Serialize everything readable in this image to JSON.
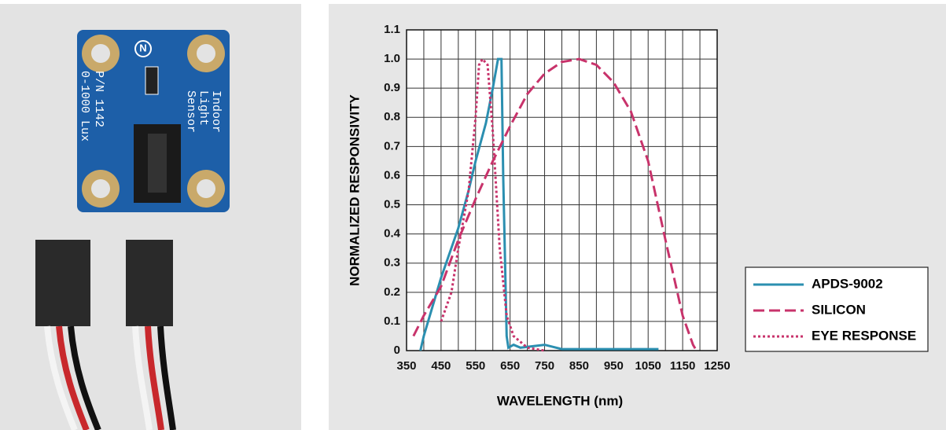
{
  "photo": {
    "board_lines": [
      "Indoor",
      "Light",
      "Sensor",
      "P/N 1142",
      "0-1000 Lux"
    ],
    "logo": "N"
  },
  "chart_data": {
    "type": "line",
    "x_label": "WAVELENGTH (nm)",
    "y_label": "NORMALIZED RESPONSIVITY",
    "xlim": [
      350,
      1250
    ],
    "ylim": [
      0,
      1.1
    ],
    "xticks": [
      350,
      450,
      550,
      650,
      750,
      850,
      950,
      1050,
      1150,
      1250
    ],
    "xminor": [
      400,
      500,
      600,
      700,
      800,
      900,
      1000,
      1100,
      1200
    ],
    "yticks": [
      0,
      0.1,
      0.2,
      0.3,
      0.4,
      0.5,
      0.6,
      0.7,
      0.8,
      0.9,
      {
        "value": 1,
        "label": "1.0"
      },
      1.1
    ],
    "grid": true,
    "legend": "lower right",
    "series": [
      {
        "name": "APDS-9002",
        "color": "#2b8fb0",
        "style": "solid",
        "x": [
          390,
          400,
          450,
          500,
          530,
          550,
          580,
          600,
          615,
          625,
          630,
          640,
          645,
          660,
          680,
          750,
          800,
          1080
        ],
        "values": [
          0,
          0.05,
          0.25,
          0.42,
          0.55,
          0.65,
          0.78,
          0.9,
          1.0,
          1.0,
          0.6,
          0.05,
          0.01,
          0.02,
          0.01,
          0.02,
          0.005,
          0.005
        ]
      },
      {
        "name": "SILICON",
        "color": "#c8336b",
        "style": "dashed",
        "x": [
          370,
          400,
          450,
          500,
          550,
          600,
          650,
          700,
          750,
          800,
          850,
          900,
          950,
          1000,
          1050,
          1100,
          1150,
          1180,
          1190
        ],
        "values": [
          0.05,
          0.12,
          0.22,
          0.38,
          0.52,
          0.65,
          0.77,
          0.88,
          0.95,
          0.99,
          1.0,
          0.98,
          0.92,
          0.82,
          0.65,
          0.38,
          0.12,
          0.02,
          0
        ]
      },
      {
        "name": "EYE RESPONSE",
        "color": "#c8336b",
        "style": "dotted",
        "x": [
          450,
          480,
          500,
          530,
          550,
          560,
          570,
          585,
          600,
          620,
          640,
          660,
          700,
          750
        ],
        "values": [
          0.1,
          0.2,
          0.35,
          0.55,
          0.8,
          0.98,
          1.0,
          0.98,
          0.75,
          0.35,
          0.12,
          0.05,
          0.01,
          0
        ]
      }
    ]
  }
}
